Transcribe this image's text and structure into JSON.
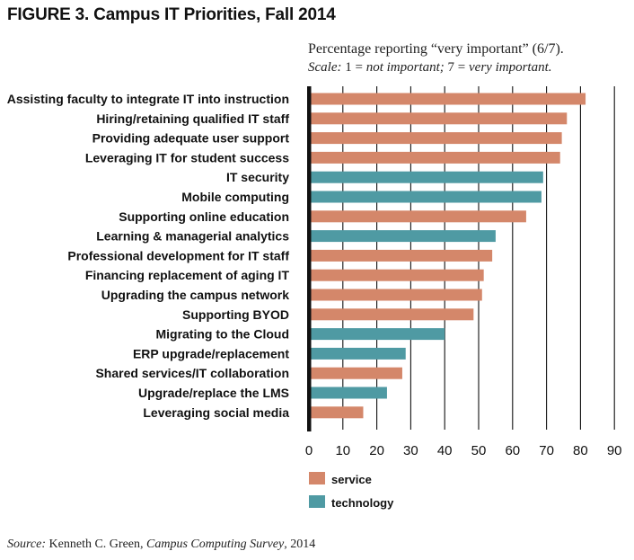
{
  "figure_title": "FIGURE 3. Campus IT Priorities, Fall 2014",
  "subtitle_line1": "Percentage reporting “very important” (6/7).",
  "subtitle_scale_label": "Scale:",
  "subtitle_scale_one": "1 = ",
  "subtitle_scale_one_meaning": "not important;",
  "subtitle_scale_seven": " 7 = ",
  "subtitle_scale_seven_meaning": "very important.",
  "source": {
    "label": "Source:",
    "author": " Kenneth C. Green, ",
    "publication": "Campus Computing Survey",
    "year": ", 2014"
  },
  "colors": {
    "service": "#d4876a",
    "technology": "#4f9aa3",
    "axis": "#111111",
    "grid": "#111111"
  },
  "chart_data": {
    "type": "bar",
    "orientation": "horizontal",
    "title": "FIGURE 3. Campus IT Priorities, Fall 2014",
    "xlabel": "",
    "ylabel": "",
    "xlim": [
      0,
      90
    ],
    "x_ticks": [
      0,
      10,
      20,
      30,
      40,
      50,
      60,
      70,
      80,
      90
    ],
    "grid": true,
    "legend": [
      {
        "key": "service",
        "label": "service"
      },
      {
        "key": "technology",
        "label": "technology"
      }
    ],
    "bars": [
      {
        "label": "Assisting faculty to integrate IT into instruction",
        "value": 81.5,
        "group": "service"
      },
      {
        "label": "Hiring/retaining qualified IT staff",
        "value": 76,
        "group": "service"
      },
      {
        "label": "Providing adequate user support",
        "value": 74.5,
        "group": "service"
      },
      {
        "label": "Leveraging IT for student success",
        "value": 74,
        "group": "service"
      },
      {
        "label": "IT security",
        "value": 69,
        "group": "technology"
      },
      {
        "label": "Mobile computing",
        "value": 68.5,
        "group": "technology"
      },
      {
        "label": "Supporting online education",
        "value": 64,
        "group": "service"
      },
      {
        "label": "Learning & managerial analytics",
        "value": 55,
        "group": "technology"
      },
      {
        "label": "Professional development for IT staff",
        "value": 54,
        "group": "service"
      },
      {
        "label": "Financing replacement of aging IT",
        "value": 51.5,
        "group": "service"
      },
      {
        "label": "Upgrading the campus network",
        "value": 51,
        "group": "service"
      },
      {
        "label": "Supporting BYOD",
        "value": 48.5,
        "group": "service"
      },
      {
        "label": "Migrating to the Cloud",
        "value": 40,
        "group": "technology"
      },
      {
        "label": "ERP upgrade/replacement",
        "value": 28.5,
        "group": "technology"
      },
      {
        "label": "Shared services/IT collaboration",
        "value": 27.5,
        "group": "service"
      },
      {
        "label": "Upgrade/replace the LMS",
        "value": 23,
        "group": "technology"
      },
      {
        "label": "Leveraging social media",
        "value": 16,
        "group": "service"
      }
    ]
  }
}
